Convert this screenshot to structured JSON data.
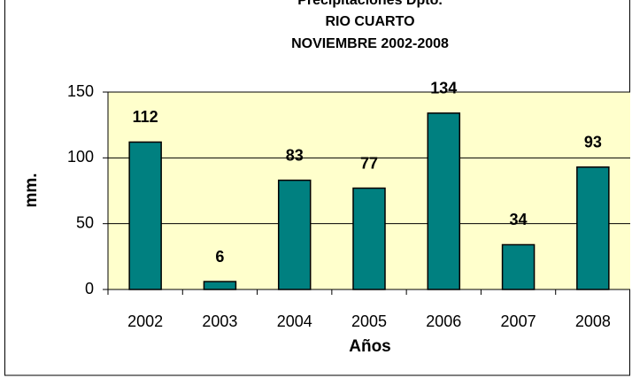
{
  "chart_data": {
    "type": "bar",
    "title": [
      "Precipitaciones Dpto.",
      "RIO CUARTO",
      "NOVIEMBRE  2002-2008"
    ],
    "x_label": "Años",
    "y_label": "mm.",
    "categories": [
      "2002",
      "2003",
      "2004",
      "2005",
      "2006",
      "2007",
      "2008"
    ],
    "values": [
      112,
      6,
      83,
      77,
      134,
      34,
      93
    ],
    "color": "#008080",
    "ylim": [
      0,
      150
    ],
    "yticks": [
      0,
      50,
      100,
      150
    ],
    "grid": true
  }
}
